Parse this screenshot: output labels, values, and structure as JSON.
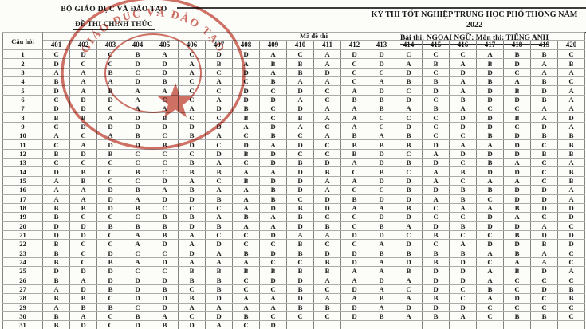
{
  "header": {
    "ministry": "BỘ GIÁO DỤC VÀ ĐÀO TẠO",
    "paper_type": "ĐỀ THI CHÍNH THỨC",
    "exam_title": "KỲ THI TỐT NGHIỆP TRUNG HỌC PHỔ THÔNG NĂM 2022",
    "exam_subject": "Bài thi: NGOẠI NGỮ; Môn thi: TIẾNG ANH"
  },
  "stamp": {
    "arc_text": "GIÁO DỤC VÀ ĐÀO TẠO",
    "star_icon": "star",
    "color": "#bf3a2b"
  },
  "colors": {
    "ink": "#1c1c1c",
    "paper": "#fcfcf9",
    "border_light": "#ababab",
    "border_dark": "#848484",
    "stamp_red": "#bf3a2b"
  },
  "table": {
    "question_col_header": "Câu hỏi",
    "code_group_header": "Mã đề thi",
    "codes": [
      "401",
      "402",
      "403",
      "404",
      "405",
      "406",
      "407",
      "408",
      "409",
      "410",
      "411",
      "412",
      "413",
      "414",
      "415",
      "416",
      "417",
      "418",
      "419",
      "420"
    ],
    "rows": [
      [
        "1",
        "C",
        "D",
        "C",
        "B",
        "A",
        "C",
        "D",
        "D",
        "A",
        "C",
        "A",
        "D",
        "D",
        "C",
        "C",
        "C",
        "A",
        "B",
        "B",
        "C"
      ],
      [
        "2",
        "D",
        "C",
        "C",
        "D",
        "D",
        "A",
        "B",
        "A",
        "B",
        "B",
        "A",
        "C",
        "D",
        "A",
        "B",
        "A",
        "B",
        "D",
        "A",
        "B"
      ],
      [
        "3",
        "A",
        "A",
        "B",
        "C",
        "D",
        "A",
        "C",
        "D",
        "A",
        "B",
        "D",
        "C",
        "C",
        "D",
        "C",
        "D",
        "D",
        "C",
        "A",
        "A"
      ],
      [
        "4",
        "B",
        "A",
        "A",
        "D",
        "B",
        "C",
        "A",
        "C",
        "B",
        "A",
        "A",
        "C",
        "A",
        "B",
        "B",
        "A",
        "B",
        "A",
        "B",
        "C"
      ],
      [
        "5",
        "D",
        "A",
        "B",
        "A",
        "A",
        "C",
        "C",
        "D",
        "C",
        "D",
        "C",
        "A",
        "D",
        "C",
        "D",
        "A",
        "D",
        "B",
        "D",
        "A"
      ],
      [
        "6",
        "C",
        "D",
        "D",
        "A",
        "C",
        "C",
        "A",
        "D",
        "D",
        "A",
        "C",
        "B",
        "B",
        "D",
        "C",
        "B",
        "D",
        "D",
        "B",
        "A"
      ],
      [
        "7",
        "D",
        "D",
        "C",
        "A",
        "A",
        "A",
        "D",
        "B",
        "C",
        "D",
        "A",
        "A",
        "B",
        "A",
        "B",
        "A",
        "C",
        "C",
        "A",
        "A"
      ],
      [
        "8",
        "B",
        "B",
        "A",
        "D",
        "B",
        "C",
        "C",
        "B",
        "C",
        "B",
        "A",
        "A",
        "C",
        "C",
        "C",
        "D",
        "D",
        "B",
        "A",
        "D"
      ],
      [
        "9",
        "C",
        "D",
        "D",
        "D",
        "D",
        "D",
        "D",
        "A",
        "D",
        "A",
        "C",
        "A",
        "C",
        "D",
        "C",
        "D",
        "D",
        "C",
        "D",
        "A"
      ],
      [
        "10",
        "A",
        "C",
        "A",
        "B",
        "C",
        "B",
        "A",
        "C",
        "B",
        "C",
        "A",
        "B",
        "A",
        "B",
        "C",
        "C",
        "B",
        "D",
        "B",
        "B"
      ],
      [
        "11",
        "C",
        "A",
        "D",
        "D",
        "B",
        "D",
        "C",
        "D",
        "A",
        "D",
        "C",
        "B",
        "B",
        "B",
        "D",
        "A",
        "A",
        "D",
        "C",
        "B"
      ],
      [
        "12",
        "B",
        "D",
        "B",
        "C",
        "C",
        "C",
        "D",
        "B",
        "D",
        "C",
        "C",
        "B",
        "D",
        "C",
        "A",
        "D",
        "D",
        "D",
        "B",
        "B"
      ],
      [
        "13",
        "C",
        "C",
        "C",
        "C",
        "C",
        "B",
        "A",
        "C",
        "D",
        "B",
        "D",
        "A",
        "D",
        "B",
        "D",
        "C",
        "B",
        "A",
        "C",
        "A"
      ],
      [
        "14",
        "D",
        "B",
        "C",
        "B",
        "C",
        "B",
        "B",
        "A",
        "A",
        "D",
        "B",
        "C",
        "B",
        "C",
        "A",
        "B",
        "D",
        "D",
        "C",
        "B"
      ],
      [
        "15",
        "A",
        "B",
        "C",
        "C",
        "D",
        "A",
        "C",
        "B",
        "D",
        "D",
        "A",
        "A",
        "D",
        "D",
        "A",
        "C",
        "A",
        "A",
        "C",
        "B"
      ],
      [
        "16",
        "A",
        "A",
        "D",
        "B",
        "A",
        "B",
        "A",
        "A",
        "B",
        "D",
        "A",
        "C",
        "C",
        "B",
        "D",
        "B",
        "B",
        "D",
        "D",
        "A"
      ],
      [
        "17",
        "A",
        "A",
        "D",
        "A",
        "D",
        "D",
        "B",
        "A",
        "B",
        "C",
        "D",
        "B",
        "D",
        "D",
        "A",
        "B",
        "C",
        "D",
        "D",
        "A"
      ],
      [
        "18",
        "B",
        "B",
        "D",
        "B",
        "C",
        "C",
        "C",
        "A",
        "D",
        "B",
        "D",
        "A",
        "A",
        "B",
        "C",
        "A",
        "A",
        "B",
        "D",
        "D"
      ],
      [
        "19",
        "B",
        "C",
        "C",
        "C",
        "B",
        "B",
        "A",
        "B",
        "A",
        "B",
        "C",
        "C",
        "D",
        "D",
        "C",
        "C",
        "D",
        "A",
        "C",
        "D"
      ],
      [
        "20",
        "D",
        "D",
        "B",
        "B",
        "B",
        "D",
        "B",
        "A",
        "A",
        "D",
        "B",
        "C",
        "B",
        "A",
        "D",
        "B",
        "D",
        "D",
        "A",
        "C"
      ],
      [
        "21",
        "D",
        "D",
        "C",
        "A",
        "B",
        "A",
        "C",
        "C",
        "D",
        "A",
        "A",
        "D",
        "D",
        "C",
        "B",
        "C",
        "C",
        "B",
        "D",
        "D"
      ],
      [
        "22",
        "B",
        "C",
        "C",
        "A",
        "D",
        "A",
        "D",
        "C",
        "C",
        "B",
        "C",
        "C",
        "A",
        "D",
        "C",
        "A",
        "D",
        "D",
        "B",
        "D"
      ],
      [
        "23",
        "B",
        "C",
        "D",
        "C",
        "C",
        "D",
        "A",
        "B",
        "D",
        "B",
        "D",
        "D",
        "B",
        "B",
        "B",
        "B",
        "A",
        "B",
        "A",
        "C"
      ],
      [
        "24",
        "B",
        "C",
        "B",
        "A",
        "D",
        "A",
        "A",
        "A",
        "C",
        "C",
        "B",
        "D",
        "A",
        "D",
        "B",
        "D",
        "C",
        "A",
        "A",
        "C"
      ],
      [
        "25",
        "D",
        "D",
        "D",
        "C",
        "C",
        "B",
        "B",
        "B",
        "B",
        "B",
        "B",
        "A",
        "A",
        "B",
        "D",
        "D",
        "A",
        "B",
        "D",
        "A"
      ],
      [
        "26",
        "B",
        "A",
        "D",
        "D",
        "D",
        "B",
        "B",
        "C",
        "D",
        "D",
        "A",
        "A",
        "D",
        "A",
        "D",
        "D",
        "A",
        "C",
        "C",
        "C"
      ],
      [
        "27",
        "A",
        "D",
        "B",
        "D",
        "B",
        "C",
        "B",
        "C",
        "C",
        "B",
        "C",
        "D",
        "A",
        "C",
        "D",
        "C",
        "B",
        "C",
        "D",
        "B"
      ],
      [
        "28",
        "B",
        "B",
        "C",
        "D",
        "D",
        "B",
        "D",
        "A",
        "A",
        "D",
        "A",
        "A",
        "B",
        "A",
        "B",
        "C",
        "A",
        "D",
        "C",
        "B"
      ],
      [
        "29",
        "A",
        "B",
        "B",
        "C",
        "D",
        "A",
        "A",
        "A",
        "A",
        "B",
        "B",
        "D",
        "A",
        "D",
        "D",
        "D",
        "C",
        "C",
        "C",
        "C"
      ],
      [
        "30",
        "B",
        "A",
        "C",
        "B",
        "A",
        "C",
        "D",
        "B",
        "C",
        "C",
        "C",
        "D",
        "B",
        "A",
        "B",
        "A",
        "C",
        "B",
        "B",
        "C"
      ],
      [
        "31",
        "B",
        "D",
        "C",
        "D",
        "B",
        "D",
        "A",
        "C",
        "D",
        "",
        "",
        "",
        "",
        "",
        "",
        "",
        "",
        "",
        "",
        ""
      ]
    ]
  }
}
